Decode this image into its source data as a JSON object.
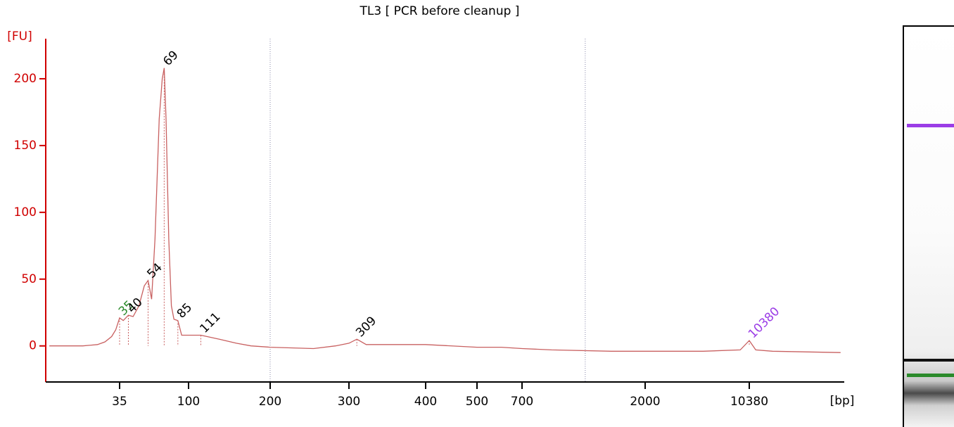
{
  "chart_data": {
    "type": "line",
    "title": "TL3  [ PCR before cleanup ]",
    "y_label": "[FU]",
    "x_label": "[bp]",
    "ylim": [
      -27,
      230
    ],
    "yticks": [
      0,
      50,
      100,
      150,
      200
    ],
    "xticks": [
      35,
      100,
      200,
      300,
      400,
      500,
      700,
      2000,
      10380
    ],
    "xgrid": [
      200,
      1200
    ],
    "color": "#c86060",
    "axis_color": "#d00000",
    "trace": {
      "x": [
        12,
        20,
        25,
        28,
        31,
        33,
        35,
        37,
        40,
        43,
        47,
        51,
        54,
        57,
        60,
        64,
        67,
        69,
        71,
        74,
        77,
        80,
        85,
        90,
        100,
        111,
        130,
        150,
        170,
        200,
        250,
        280,
        300,
        309,
        320,
        400,
        500,
        600,
        700,
        900,
        1500,
        5000,
        9000,
        10380,
        11500,
        15000,
        44000
      ],
      "values": [
        0,
        0,
        1,
        3,
        7,
        12,
        21,
        19,
        23,
        22,
        30,
        45,
        49,
        35,
        80,
        170,
        200,
        208,
        170,
        80,
        30,
        20,
        19,
        8,
        8,
        8,
        5,
        2,
        0,
        -1,
        -2,
        0,
        2,
        5,
        1,
        1,
        -1,
        -1,
        -2,
        -3,
        -4,
        -4,
        -3,
        4,
        -3,
        -4,
        -5
      ]
    },
    "peaks": [
      {
        "size": 35,
        "height": 21,
        "color": "#2a8a2a"
      },
      {
        "size": 40,
        "height": 23,
        "color": "#000000"
      },
      {
        "size": 54,
        "height": 49,
        "color": "#000000"
      },
      {
        "size": 69,
        "height": 208,
        "color": "#000000"
      },
      {
        "size": 85,
        "height": 19,
        "color": "#000000"
      },
      {
        "size": 111,
        "height": 8,
        "color": "#000000"
      },
      {
        "size": 309,
        "height": 5,
        "color": "#000000"
      },
      {
        "size": 10380,
        "height": 4,
        "color": "#9b3de6"
      }
    ]
  }
}
